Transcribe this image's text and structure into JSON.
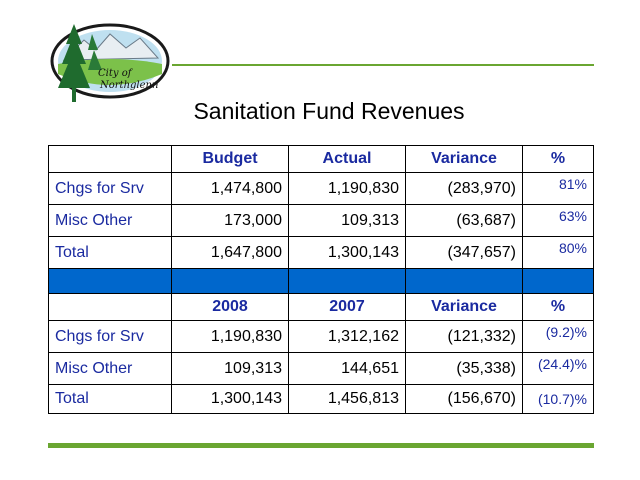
{
  "title": "Sanitation Fund Revenues",
  "logo": {
    "text": "City of Northglenn",
    "icon": "city-of-northglenn-logo"
  },
  "colors": {
    "accent_green": "#6aa631",
    "band_blue": "#0067cc",
    "label_blue": "#1a2aa0"
  },
  "table1": {
    "headers": [
      "",
      "Budget",
      "Actual",
      "Variance",
      "%"
    ],
    "rows": [
      {
        "label": "Chgs for Srv",
        "c1": "1,474,800",
        "c2": "1,190,830",
        "c3": "(283,970)",
        "pct": "81%"
      },
      {
        "label": "Misc Other",
        "c1": "173,000",
        "c2": "109,313",
        "c3": "(63,687)",
        "pct": "63%"
      },
      {
        "label": "Total",
        "c1": "1,647,800",
        "c2": "1,300,143",
        "c3": "(347,657)",
        "pct": "80%"
      }
    ]
  },
  "table2": {
    "headers": [
      "",
      "2008",
      "2007",
      "Variance",
      "%"
    ],
    "rows": [
      {
        "label": "Chgs for Srv",
        "c1": "1,190,830",
        "c2": "1,312,162",
        "c3": "(121,332)",
        "pct": "(9.2)%"
      },
      {
        "label": "Misc Other",
        "c1": "109,313",
        "c2": "144,651",
        "c3": "(35,338)",
        "pct": "(24.4)%"
      },
      {
        "label": "Total",
        "c1": "1,300,143",
        "c2": "1,456,813",
        "c3": "(156,670)",
        "pct": "(10.7)%"
      }
    ]
  }
}
